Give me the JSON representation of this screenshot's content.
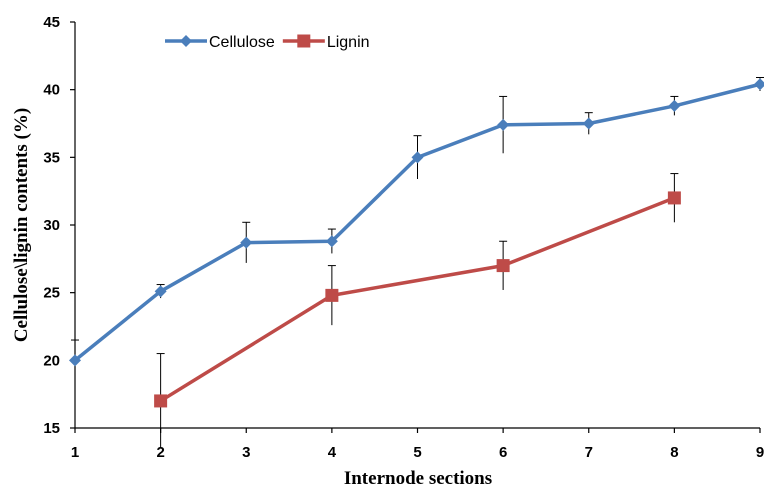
{
  "chart_data": {
    "type": "line",
    "xlabel": "Internode sections",
    "ylabel": "Cellulose\\lignin contents (%)",
    "x_ticks": [
      1,
      2,
      3,
      4,
      5,
      6,
      7,
      8,
      9
    ],
    "y_ticks": [
      15,
      20,
      25,
      30,
      35,
      40,
      45
    ],
    "xlim": [
      1,
      9
    ],
    "ylim": [
      15,
      45
    ],
    "grid": false,
    "legend_position": "top-left",
    "series": [
      {
        "name": "Cellulose",
        "color": "#4A7EBB",
        "marker": "diamond",
        "x": [
          1,
          2,
          3,
          4,
          5,
          6,
          7,
          8,
          9
        ],
        "values": [
          20.0,
          25.1,
          28.7,
          28.8,
          35.0,
          37.4,
          37.5,
          38.8,
          40.4
        ],
        "error": [
          1.5,
          0.5,
          1.5,
          0.9,
          1.6,
          2.1,
          0.8,
          0.7,
          0.5
        ]
      },
      {
        "name": "Lignin",
        "color": "#BE4B48",
        "marker": "square",
        "x": [
          2,
          4,
          6,
          8
        ],
        "values": [
          17.0,
          24.8,
          27.0,
          32.0
        ],
        "error": [
          3.5,
          2.2,
          1.8,
          1.8
        ]
      }
    ]
  }
}
